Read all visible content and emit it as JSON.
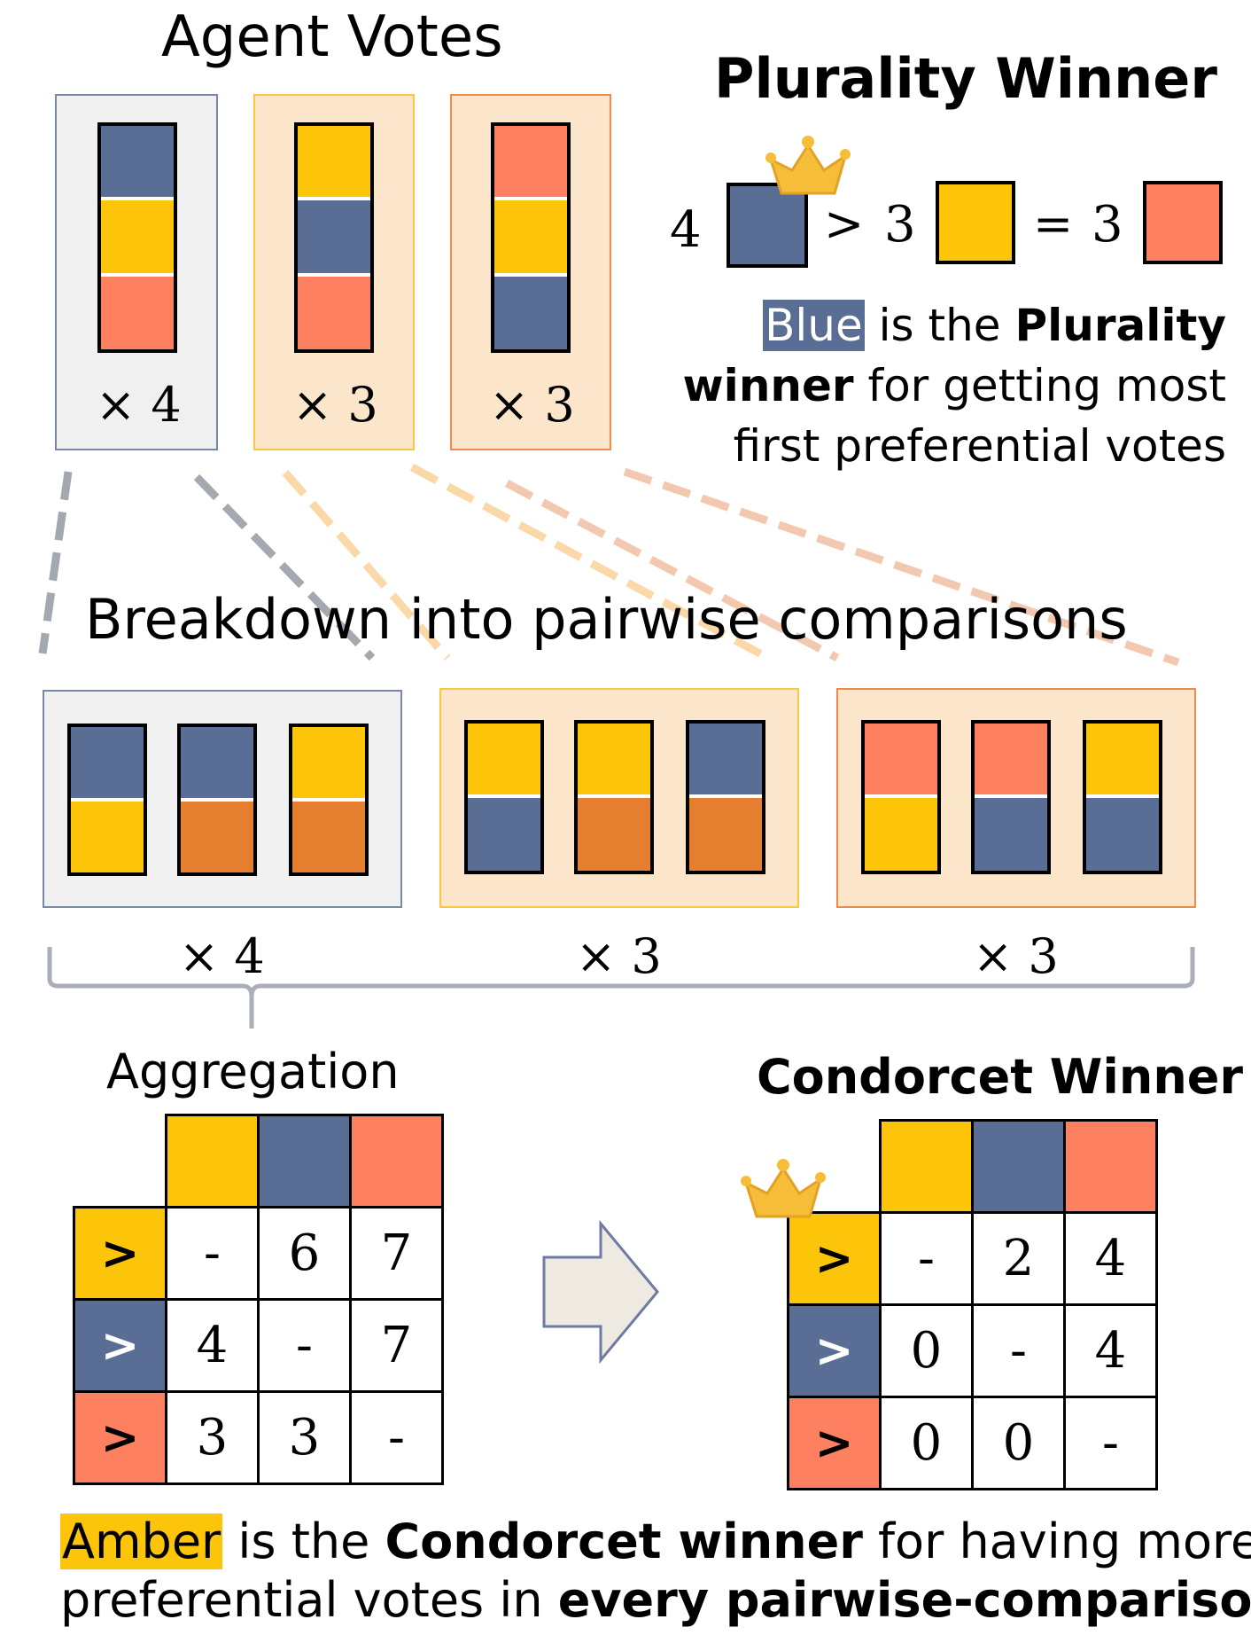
{
  "colors": {
    "blue": "#5a6d95",
    "amber": "#fcc50a",
    "coral": "#fd8060",
    "orange": "#e67e30",
    "panel_gray": "#f0f0f0",
    "panel_peach": "#fbe6cc",
    "panel_border_gray": "#7b87a6",
    "panel_border_amber": "#fbc640",
    "panel_border_orange": "#ef8a4d",
    "crown": "#f6be38"
  },
  "agent_votes": {
    "title": "Agent Votes",
    "ballots": [
      {
        "ranking": [
          "blue",
          "amber",
          "coral"
        ],
        "multiplier": "× 4"
      },
      {
        "ranking": [
          "amber",
          "blue",
          "coral"
        ],
        "multiplier": "× 3"
      },
      {
        "ranking": [
          "coral",
          "amber",
          "blue"
        ],
        "multiplier": "× 3"
      }
    ]
  },
  "plurality": {
    "title": "Plurality Winner",
    "counts": [
      {
        "count": "4",
        "color": "blue",
        "winner": true
      },
      {
        "op": ">",
        "count": "3",
        "color": "amber"
      },
      {
        "op": "=",
        "count": "3",
        "color": "coral"
      }
    ],
    "text": {
      "highlight": "Blue",
      "part1": " is the ",
      "bold1": "Plurality",
      "bold2": "winner",
      "part2": " for getting most",
      "line3": "first preferential votes"
    }
  },
  "breakdown": {
    "title": "Breakdown into pairwise comparisons",
    "groups": [
      {
        "pairs": [
          [
            "blue",
            "amber"
          ],
          [
            "blue",
            "orange"
          ],
          [
            "amber",
            "orange"
          ]
        ],
        "multiplier": "× 4"
      },
      {
        "pairs": [
          [
            "amber",
            "blue"
          ],
          [
            "amber",
            "orange"
          ],
          [
            "blue",
            "orange"
          ]
        ],
        "multiplier": "× 3"
      },
      {
        "pairs": [
          [
            "coral",
            "amber"
          ],
          [
            "coral",
            "blue"
          ],
          [
            "amber",
            "blue"
          ]
        ],
        "multiplier": "× 3"
      }
    ]
  },
  "aggregation": {
    "title": "Aggregation",
    "columns": [
      "amber",
      "blue",
      "coral"
    ],
    "row_symbol": ">",
    "rows": [
      {
        "color": "amber",
        "cells": [
          "-",
          "6",
          "7"
        ]
      },
      {
        "color": "blue",
        "cells": [
          "4",
          "-",
          "7"
        ]
      },
      {
        "color": "coral",
        "cells": [
          "3",
          "3",
          "-"
        ]
      }
    ]
  },
  "condorcet": {
    "title": "Condorcet Winner",
    "columns": [
      "amber",
      "blue",
      "coral"
    ],
    "row_symbol": ">",
    "rows": [
      {
        "color": "amber",
        "cells": [
          "-",
          "2",
          "4"
        ],
        "winner": true
      },
      {
        "color": "blue",
        "cells": [
          "0",
          "-",
          "4"
        ]
      },
      {
        "color": "coral",
        "cells": [
          "0",
          "0",
          "-"
        ]
      }
    ]
  },
  "footer": {
    "highlight": "Amber",
    "part1": " is the ",
    "bold1": "Condorcet winner",
    "part2": " for having more",
    "line2a": "preferential votes in ",
    "bold2": "every pairwise-comparison"
  }
}
